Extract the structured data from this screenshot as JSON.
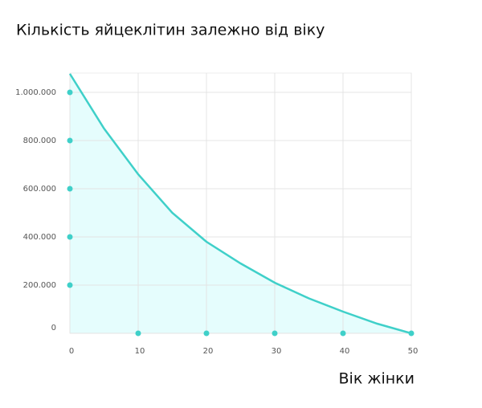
{
  "chart_data": {
    "type": "area",
    "title": "Кількість яйцеклітин залежно від віку",
    "x_label": "Вік жінки",
    "x": [
      0,
      5,
      10,
      15,
      20,
      25,
      30,
      35,
      40,
      45,
      50
    ],
    "series": [
      {
        "color": "#3fd0c9",
        "fill": "#e5fdfd",
        "values": [
          1077000,
          850000,
          660000,
          500000,
          380000,
          290000,
          210000,
          145000,
          90000,
          40000,
          0
        ]
      }
    ],
    "xlim": [
      0,
      50
    ],
    "xticks": [
      0,
      10,
      20,
      30,
      40,
      50
    ],
    "ylim": [
      0,
      1080000
    ],
    "yticks": [
      0,
      {
        "value": 200000,
        "label": "200.000"
      },
      {
        "value": 400000,
        "label": "400.000"
      },
      {
        "value": 600000,
        "label": "600.000"
      },
      {
        "value": 800000,
        "label": "800.000"
      },
      {
        "value": 1000000,
        "label": "1.000.000"
      }
    ],
    "grid": true
  }
}
